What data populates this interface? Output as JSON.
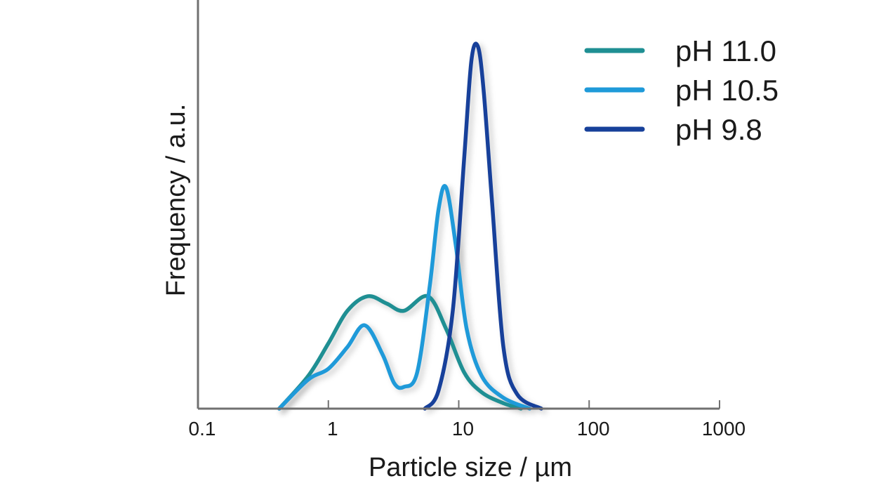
{
  "chart_data": {
    "type": "line",
    "xlabel": "Particle size / µm",
    "ylabel": "Frequency / a.u.",
    "xscale": "log",
    "xlim": [
      0.1,
      1000
    ],
    "ylim": [
      0,
      1.05
    ],
    "x_ticks": [
      0.1,
      1,
      10,
      100,
      1000
    ],
    "x_tick_labels": [
      "0.1",
      "1",
      "10",
      "100",
      "1000"
    ],
    "grid": false,
    "legend_position": "top-right",
    "series": [
      {
        "name": "pH 11.0",
        "color": "#1f8f93",
        "points": [
          [
            0.42,
            0.0
          ],
          [
            0.7,
            0.09
          ],
          [
            1.0,
            0.18
          ],
          [
            1.4,
            0.27
          ],
          [
            2.0,
            0.31
          ],
          [
            2.8,
            0.29
          ],
          [
            3.8,
            0.27
          ],
          [
            5.8,
            0.31
          ],
          [
            8.0,
            0.22
          ],
          [
            11,
            0.1
          ],
          [
            15,
            0.045
          ],
          [
            22,
            0.015
          ],
          [
            30,
            0.0
          ]
        ]
      },
      {
        "name": "pH 10.5",
        "color": "#1f9ad9",
        "points": [
          [
            0.42,
            0.0
          ],
          [
            0.7,
            0.08
          ],
          [
            1.0,
            0.11
          ],
          [
            1.4,
            0.17
          ],
          [
            1.9,
            0.23
          ],
          [
            2.6,
            0.15
          ],
          [
            3.2,
            0.07
          ],
          [
            3.8,
            0.06
          ],
          [
            4.8,
            0.1
          ],
          [
            6.0,
            0.34
          ],
          [
            7.0,
            0.55
          ],
          [
            8.0,
            0.61
          ],
          [
            9.5,
            0.45
          ],
          [
            11.5,
            0.22
          ],
          [
            15,
            0.09
          ],
          [
            22,
            0.03
          ],
          [
            35,
            0.0
          ]
        ]
      },
      {
        "name": "pH 9.8",
        "color": "#17409a",
        "points": [
          [
            5.5,
            0.0
          ],
          [
            7.0,
            0.05
          ],
          [
            9.0,
            0.27
          ],
          [
            11,
            0.69
          ],
          [
            12.5,
            0.96
          ],
          [
            14,
            1.0
          ],
          [
            15.5,
            0.88
          ],
          [
            18,
            0.57
          ],
          [
            22,
            0.17
          ],
          [
            28,
            0.04
          ],
          [
            43,
            0.0
          ]
        ]
      }
    ]
  }
}
